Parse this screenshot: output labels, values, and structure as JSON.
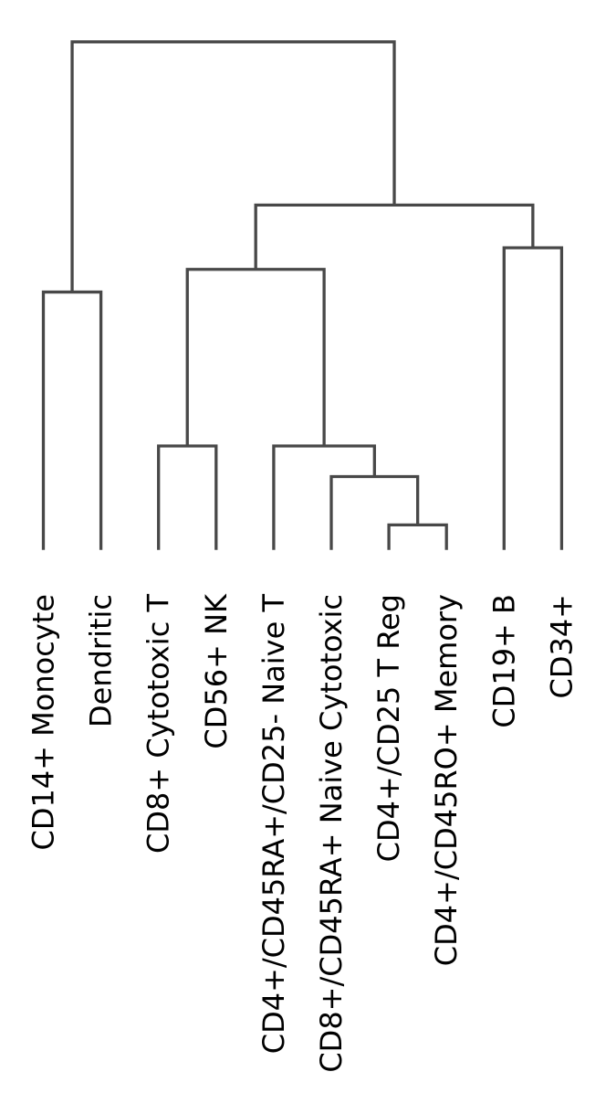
{
  "chart_data": {
    "type": "dendrogram",
    "orientation": "top",
    "title": "",
    "xlabel": "",
    "ylabel": "",
    "axes_visible": false,
    "legend": "none",
    "background_color": "#ffffff",
    "link_color": "#484848",
    "label_color": "#000000",
    "leaves": [
      "CD14+ Monocyte",
      "Dendritic",
      "CD8+ Cytotoxic T",
      "CD56+ NK",
      "CD4+/CD45RA+/CD25- Naive T",
      "CD8+/CD45RA+ Naive Cytotoxic",
      "CD4+/CD25 T Reg",
      "CD4+/CD45RO+ Memory",
      "CD19+ B",
      "CD34+"
    ],
    "merges": [
      {
        "id": "m1",
        "children": [
          "L6",
          "L7"
        ],
        "height": 0.0493
      },
      {
        "id": "m2",
        "children": [
          "L5",
          "m1"
        ],
        "height": 0.1444
      },
      {
        "id": "m3",
        "children": [
          "L4",
          "m2"
        ],
        "height": 0.2047
      },
      {
        "id": "m4",
        "children": [
          "L2",
          "L3"
        ],
        "height": 0.2047
      },
      {
        "id": "m5",
        "children": [
          "m4",
          "m3"
        ],
        "height": 0.5522
      },
      {
        "id": "m6",
        "children": [
          "L8",
          "L9"
        ],
        "height": 0.5948
      },
      {
        "id": "m7",
        "children": [
          "m5",
          "m6"
        ],
        "height": 0.6788
      },
      {
        "id": "m8",
        "children": [
          "L0",
          "L1"
        ],
        "height": 0.5076
      },
      {
        "id": "m9",
        "children": [
          "m8",
          "m7"
        ],
        "height": 1.0
      }
    ]
  }
}
